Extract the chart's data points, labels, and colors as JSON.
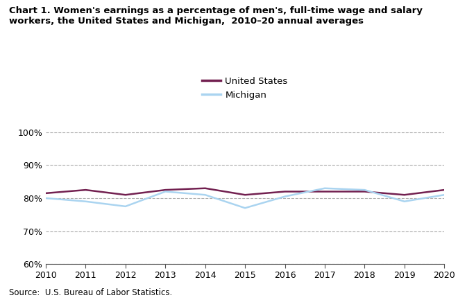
{
  "years": [
    2010,
    2011,
    2012,
    2013,
    2014,
    2015,
    2016,
    2017,
    2018,
    2019,
    2020
  ],
  "us_values": [
    81.5,
    82.5,
    81.0,
    82.5,
    83.0,
    81.0,
    82.0,
    82.0,
    82.0,
    81.0,
    82.5
  ],
  "mi_values": [
    80.0,
    79.0,
    77.5,
    82.0,
    81.0,
    77.0,
    80.5,
    83.0,
    82.5,
    79.0,
    81.0
  ],
  "us_color": "#722050",
  "mi_color": "#aad4f0",
  "us_label": "United States",
  "mi_label": "Michigan",
  "title_line1": "Chart 1. Women's earnings as a percentage of men's, full-time wage and salary",
  "title_line2": "workers, the United States and Michigan,  2010–20 annual averages",
  "source_text": "Source:  U.S. Bureau of Labor Statistics.",
  "ylim_min": 60,
  "ylim_max": 101,
  "yticks": [
    60,
    70,
    80,
    90,
    100
  ],
  "ytick_labels": [
    "60%",
    "70%",
    "80%",
    "90%",
    "100%"
  ],
  "grid_color": "#b0b0b0",
  "background_color": "#ffffff",
  "line_width": 1.8
}
